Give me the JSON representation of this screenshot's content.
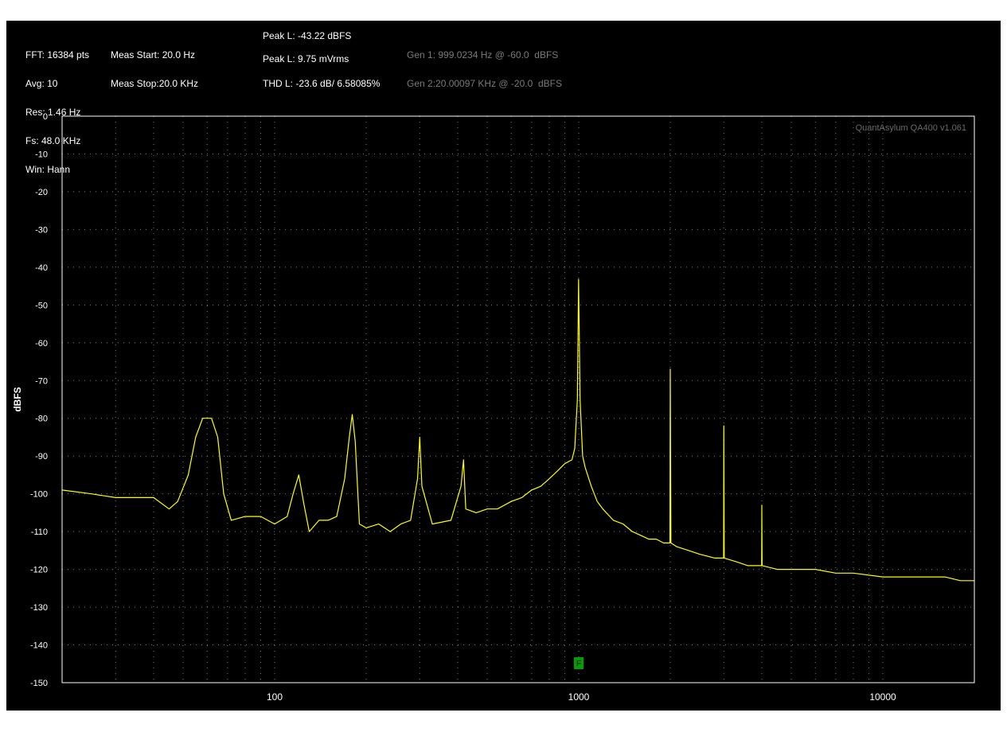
{
  "info": {
    "col1": [
      "FFT: 16384 pts",
      "Avg: 10",
      "Res: 1.46 Hz",
      "Fs: 48.0 KHz",
      "Win: Hann"
    ],
    "col2": [
      "Meas Start: 20.0 Hz",
      "Meas Stop:20.0 KHz"
    ],
    "peak_dbfs": "Peak L: -43.22 dBFS",
    "peak_vrms": "Peak L: 9.75 mVrms",
    "thd": "THD L: -23.6 dB/ 6.58085%",
    "gen1": "Gen 1: 999.0234 Hz @ -60.0  dBFS",
    "gen2": "Gen 2:20.00097 KHz @ -20.0  dBFS"
  },
  "watermark": "QuantAsylum QA400 v1.061",
  "marker_label": "F",
  "colors": {
    "background": "#000000",
    "plot_border": "#ffffff",
    "grid": "#7f7f7f",
    "trace": "#ffff00",
    "marker": "#00a000"
  },
  "chart_data": {
    "type": "line",
    "x_scale": "log",
    "xlim": [
      20,
      20000
    ],
    "ylim": [
      -150,
      0
    ],
    "ylabel": "dBFS",
    "xlabel": "",
    "x_ticks": [
      100,
      1000,
      10000
    ],
    "x_tick_labels": [
      "100",
      "1000",
      "10000"
    ],
    "y_ticks": [
      0,
      -10,
      -20,
      -30,
      -40,
      -50,
      -60,
      -70,
      -80,
      -90,
      -100,
      -110,
      -120,
      -130,
      -140,
      -150
    ],
    "y_tick_labels": [
      "0",
      "-10",
      "-20",
      "-30",
      "-40",
      "-50",
      "-60",
      "-70",
      "-80",
      "-90",
      "-100",
      "-110",
      "-120",
      "-130",
      "-140",
      "-150"
    ],
    "grid": true,
    "marker": {
      "x": 1000,
      "label": "F"
    },
    "series": [
      {
        "x": [
          20,
          25,
          30,
          35,
          40,
          45,
          48,
          52,
          55,
          58,
          60,
          62,
          65,
          68,
          72,
          80,
          90,
          100,
          110,
          115,
          120,
          125,
          130,
          140,
          150,
          160,
          170,
          176,
          180,
          184,
          190,
          200,
          220,
          240,
          260,
          280,
          295,
          300,
          305,
          330,
          380,
          410,
          418,
          425,
          460,
          500,
          540,
          600,
          650,
          700,
          750,
          800,
          850,
          900,
          950,
          970,
          990,
          999,
          1010,
          1030,
          1050,
          1100,
          1150,
          1200,
          1300,
          1400,
          1500,
          1600,
          1700,
          1800,
          1900,
          1995,
          2000,
          2010,
          2100,
          2300,
          2500,
          2800,
          2995,
          3000,
          3010,
          3300,
          3600,
          3900,
          3995,
          4000,
          4010,
          4500,
          5000,
          6000,
          7000,
          8000,
          10000,
          12000,
          14000,
          16000,
          18000,
          20000
        ],
        "y": [
          -99,
          -100,
          -101,
          -101,
          -101,
          -104,
          -102,
          -95,
          -85,
          -80,
          -80,
          -80,
          -85,
          -100,
          -107,
          -106,
          -106,
          -108,
          -106,
          -100,
          -95,
          -103,
          -110,
          -107,
          -107,
          -106,
          -96,
          -85,
          -79,
          -86,
          -108,
          -109,
          -108,
          -110,
          -108,
          -107,
          -96,
          -85,
          -98,
          -108,
          -107,
          -98,
          -91,
          -104,
          -105,
          -104,
          -104,
          -102,
          -101,
          -99,
          -98,
          -96,
          -94,
          -92,
          -91,
          -88,
          -75,
          -43.2,
          -75,
          -90,
          -93,
          -98,
          -102,
          -104,
          -107,
          -108,
          -110,
          -111,
          -112,
          -112,
          -113,
          -113,
          -67,
          -113,
          -114,
          -115,
          -116,
          -117,
          -117,
          -82,
          -117,
          -118,
          -119,
          -119,
          -119,
          -103,
          -119,
          -120,
          -120,
          -120,
          -121,
          -121,
          -122,
          -122,
          -122,
          -122,
          -123,
          -123
        ]
      }
    ]
  }
}
